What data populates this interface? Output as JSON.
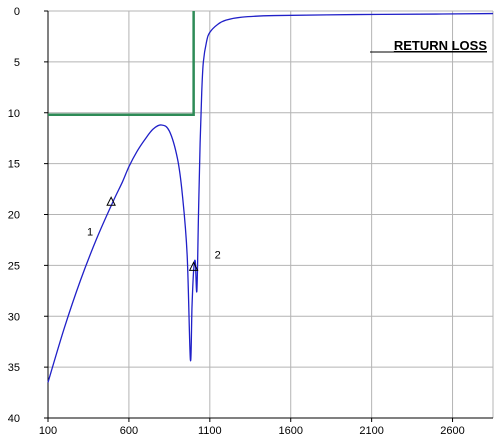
{
  "chart_data": {
    "type": "line",
    "title": "RETURN LOSS",
    "xlabel": "",
    "ylabel": "",
    "xlim": [
      100,
      2850
    ],
    "ylim": [
      0,
      40
    ],
    "y_inverted": true,
    "grid": true,
    "x_ticks": [
      100,
      600,
      1100,
      1600,
      2100,
      2600
    ],
    "y_ticks": [
      0,
      5,
      10,
      15,
      20,
      25,
      30,
      35,
      40
    ],
    "colors": {
      "curve": "#2020c8",
      "limit": "#2e8b57",
      "grid": "#b4b4b4",
      "axis": "#000000"
    },
    "series": [
      {
        "kind": "curve",
        "x": [
          100,
          200,
          300,
          400,
          500,
          560,
          600,
          650,
          700,
          750,
          800,
          850,
          900,
          930,
          960,
          980,
          990,
          1000,
          1010,
          1020,
          1030,
          1040,
          1050,
          1060,
          1080,
          1100,
          1150,
          1200,
          1300,
          1500,
          2000,
          2500,
          2850
        ],
        "values": [
          36.5,
          31.2,
          26.5,
          22.4,
          18.8,
          16.8,
          15.3,
          13.8,
          12.6,
          11.6,
          11.2,
          11.8,
          14.5,
          18.0,
          24.0,
          34.3,
          29.0,
          25.5,
          24.6,
          27.5,
          20.0,
          13.0,
          8.0,
          5.0,
          3.0,
          2.1,
          1.3,
          0.9,
          0.6,
          0.45,
          0.35,
          0.3,
          0.25
        ]
      },
      {
        "kind": "limit",
        "x": [
          100,
          1000,
          1000
        ],
        "values": [
          10.2,
          10.2,
          0
        ]
      }
    ],
    "markers": [
      {
        "label": "1",
        "x": 490,
        "y": 18.8
      },
      {
        "label": "2",
        "x": 1000,
        "y": 25.2
      }
    ]
  }
}
